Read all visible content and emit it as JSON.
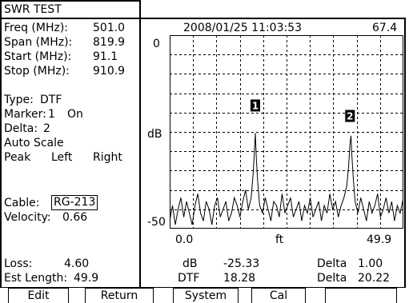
{
  "title": "SWR TEST",
  "params": {
    "freq_label": "Freq (MHz):",
    "freq_value": "501.0",
    "span_label": "Span (MHz):",
    "span_value": "819.9",
    "start_label": "Start (MHz):",
    "start_value": "91.1",
    "stop_label": "Stop (MHz):",
    "stop_value": "910.9",
    "type_label": "Type:",
    "type_value": "DTF",
    "marker_label": "Marker:",
    "marker_value": "1",
    "marker_state": "On",
    "delta_label": "Delta:",
    "delta_value": "2",
    "auto_scale": "Auto Scale",
    "peak_label": "Peak",
    "peak_left": "Left",
    "peak_right": "Right",
    "cable_label": "Cable:",
    "cable_value": "RG-213",
    "velocity_label": "Velocity:",
    "velocity_value": "0.66",
    "loss_label": "Loss:",
    "loss_value": "4.60",
    "est_length_label": "Est Length:",
    "est_length_value": "49.9"
  },
  "graph": {
    "timestamp": "2008/01/25 11:03:53",
    "top_right_value": "67.4",
    "y_top_label": "0",
    "y_unit_label": "dB",
    "y_bottom_label": "-50",
    "x_start_label": "0.0",
    "x_unit_label": "ft",
    "x_end_label": "49.9",
    "marker1_label": "1",
    "marker2_label": "2"
  },
  "readout": {
    "db_label": "dB",
    "db_value": "-25.33",
    "delta1_label": "Delta",
    "delta1_value": "1.00",
    "dtf_label": "DTF",
    "dtf_value": "18.28",
    "delta2_label": "Delta",
    "delta2_value": "20.22"
  },
  "softkeys": [
    "Edit",
    "Return",
    "System",
    "Cal",
    ""
  ],
  "chart_data": {
    "type": "line",
    "title": "",
    "xlabel": "ft",
    "ylabel": "dB",
    "xlim": [
      0.0,
      49.9
    ],
    "ylim": [
      -50,
      0
    ],
    "grid": true,
    "series": [
      {
        "x": [
          0.0,
          0.6,
          1.2,
          1.8,
          2.4,
          3.0,
          3.6,
          4.2,
          4.8,
          5.4,
          6.0,
          6.6,
          7.2,
          7.8,
          8.4,
          9.0,
          9.6,
          10.2,
          10.8,
          11.4,
          12.0,
          12.6,
          13.2,
          13.8,
          14.4,
          15.0,
          15.6,
          16.2,
          16.8,
          17.4,
          17.8,
          18.1,
          18.28,
          18.5,
          18.8,
          19.2,
          19.8,
          20.4,
          21.0,
          21.6,
          22.2,
          22.8,
          23.4,
          24.0,
          24.6,
          25.2,
          25.8,
          26.4,
          27.0,
          27.6,
          28.2,
          28.8,
          29.4,
          30.0,
          30.6,
          31.2,
          31.8,
          32.4,
          33.0,
          33.6,
          34.2,
          34.8,
          35.4,
          36.0,
          36.6,
          37.2,
          37.8,
          38.2,
          38.5,
          38.7,
          38.9,
          39.2,
          39.6,
          40.2,
          40.8,
          41.4,
          42.0,
          42.6,
          43.2,
          43.8,
          44.4,
          45.0,
          45.6,
          46.2,
          46.8,
          47.4,
          48.0,
          48.6,
          49.2,
          49.9
        ],
        "values": [
          -48,
          -44,
          -49,
          -45,
          -42,
          -47,
          -43,
          -46,
          -49,
          -44,
          -41,
          -46,
          -48,
          -43,
          -45,
          -49,
          -44,
          -42,
          -47,
          -45,
          -43,
          -48,
          -46,
          -42,
          -44,
          -47,
          -43,
          -40,
          -45,
          -42,
          -36,
          -30,
          -25.3,
          -32,
          -38,
          -44,
          -46,
          -42,
          -45,
          -48,
          -43,
          -44,
          -47,
          -41,
          -46,
          -44,
          -42,
          -47,
          -45,
          -43,
          -48,
          -44,
          -46,
          -42,
          -47,
          -45,
          -43,
          -48,
          -44,
          -46,
          -41,
          -45,
          -43,
          -47,
          -44,
          -42,
          -39,
          -34,
          -28,
          -26,
          -31,
          -37,
          -43,
          -46,
          -42,
          -45,
          -48,
          -43,
          -46,
          -44,
          -41,
          -47,
          -45,
          -42,
          -46,
          -43,
          -48,
          -44,
          -46,
          -42
        ]
      }
    ],
    "markers": [
      {
        "label": "1",
        "x": 18.28,
        "y": -25.3
      },
      {
        "label": "2",
        "x": 38.5,
        "y": -28
      }
    ]
  }
}
